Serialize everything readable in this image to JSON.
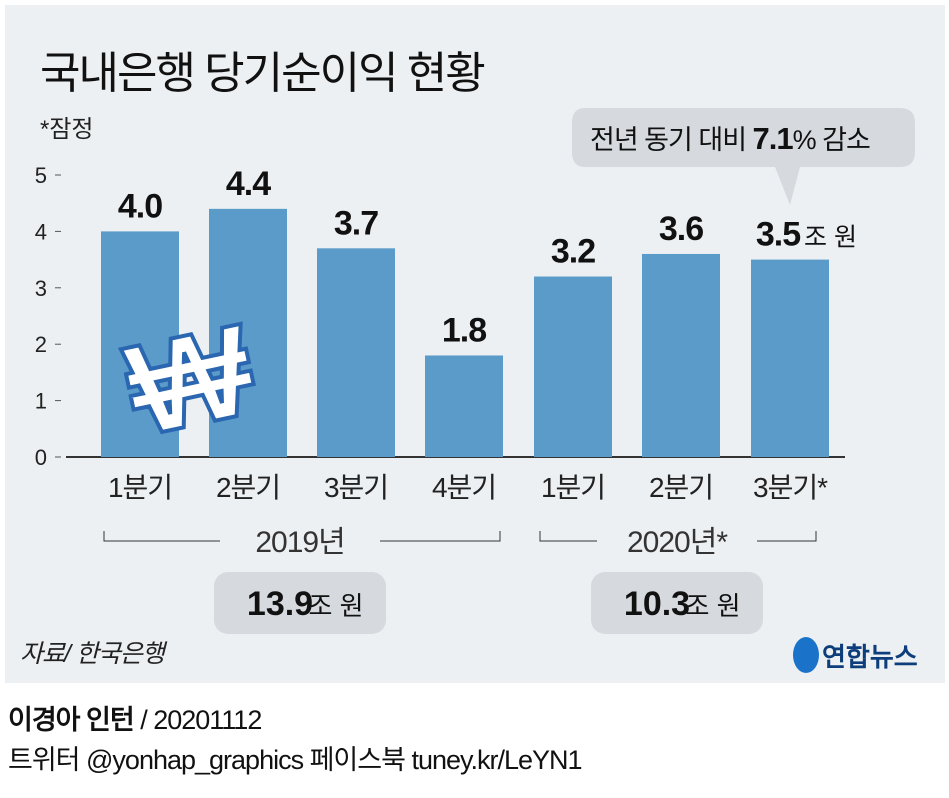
{
  "chart_data": {
    "type": "bar",
    "title": "국내은행 당기순이익 현황",
    "note": "*잠정",
    "categories": [
      "1분기",
      "2분기",
      "3분기",
      "4분기",
      "1분기",
      "2분기",
      "3분기*"
    ],
    "values": [
      4.0,
      4.4,
      3.7,
      1.8,
      3.2,
      3.6,
      3.5
    ],
    "value_labels": [
      "4.0",
      "4.4",
      "3.7",
      "1.8",
      "3.2",
      "3.6",
      "3.5"
    ],
    "unit_label": "조 원",
    "yticks": [
      "0",
      "1",
      "2",
      "3",
      "4",
      "5"
    ],
    "ylim": [
      0,
      5
    ],
    "groups": [
      {
        "label": "2019년",
        "total": "13.9",
        "total_unit": "조 원"
      },
      {
        "label": "2020년*",
        "total": "10.3",
        "total_unit": "조 원"
      }
    ],
    "callout": {
      "prefix": "전년 동기 대비 ",
      "value": "7.1",
      "suffix": "% 감소"
    },
    "source": "자료/ 한국은행",
    "bar_color": "#5b9bc9"
  },
  "logo": "연합뉴스",
  "credit": {
    "author": "이경아 인턴",
    "date": " / 20201112"
  },
  "social": "트위터 @yonhap_graphics  페이스북 tuney.kr/LeYN1"
}
